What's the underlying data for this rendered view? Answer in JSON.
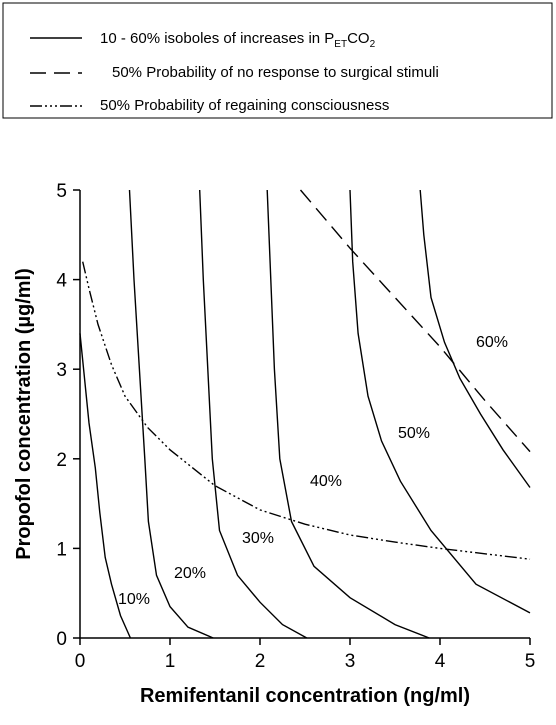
{
  "chart_data": {
    "type": "line",
    "legend": [
      {
        "text": [
          "10 - 60% isoboles of increases in P",
          "ET",
          "CO",
          "2"
        ],
        "style": "solid"
      },
      {
        "text": "50% Probability of no response to surgical stimuli",
        "style": "dashed"
      },
      {
        "text": "50% Probability of regaining consciousness",
        "style": "dashdot"
      }
    ],
    "x_label": "Remifentanil concentration (ng/ml)",
    "y_label": "Propofol concentration (µg/ml)",
    "xlim": [
      0,
      5
    ],
    "xticks": [
      0,
      1,
      2,
      3,
      4,
      5
    ],
    "ylim": [
      0,
      5
    ],
    "yticks": [
      0,
      1,
      2,
      3,
      4,
      5
    ],
    "color": "#000000",
    "series": [
      {
        "name": "10%",
        "style": "solid",
        "x": [
          0,
          0.05,
          0.1,
          0.17,
          0.22,
          0.28,
          0.35,
          0.45,
          0.56
        ],
        "y": [
          3.4,
          2.9,
          2.4,
          1.9,
          1.4,
          0.9,
          0.6,
          0.25,
          0
        ]
      },
      {
        "name": "20%",
        "style": "solid",
        "x": [
          0.55,
          0.6,
          0.66,
          0.72,
          0.76,
          0.85,
          1.0,
          1.2,
          1.48
        ],
        "y": [
          5,
          4,
          3,
          2,
          1.3,
          0.7,
          0.35,
          0.12,
          0
        ]
      },
      {
        "name": "30%",
        "style": "solid",
        "x": [
          1.33,
          1.37,
          1.42,
          1.47,
          1.55,
          1.75,
          2.0,
          2.25,
          2.52
        ],
        "y": [
          5,
          4,
          3,
          2,
          1.2,
          0.7,
          0.4,
          0.15,
          0
        ]
      },
      {
        "name": "40%",
        "style": "solid",
        "x": [
          2.08,
          2.12,
          2.16,
          2.22,
          2.35,
          2.6,
          3.0,
          3.5,
          3.88
        ],
        "y": [
          5,
          4,
          3,
          2,
          1.3,
          0.8,
          0.45,
          0.15,
          0
        ]
      },
      {
        "name": "50%",
        "style": "solid",
        "x": [
          3.0,
          3.03,
          3.09,
          3.2,
          3.35,
          3.56,
          3.9,
          4.4,
          5
        ],
        "y": [
          5,
          4.2,
          3.4,
          2.7,
          2.2,
          1.75,
          1.2,
          0.6,
          0.28
        ]
      },
      {
        "name": "60%",
        "style": "solid",
        "x": [
          3.78,
          3.82,
          3.9,
          4.05,
          4.22,
          4.45,
          4.7,
          5
        ],
        "y": [
          5,
          4.5,
          3.8,
          3.3,
          2.9,
          2.5,
          2.1,
          1.68
        ]
      },
      {
        "style": "dashed",
        "x": [
          2.45,
          3,
          3.5,
          4,
          4.5,
          5
        ],
        "y": [
          5,
          4.35,
          3.8,
          3.25,
          2.65,
          2.08
        ]
      },
      {
        "style": "dashdot",
        "x": [
          0.03,
          0.1,
          0.2,
          0.35,
          0.5,
          0.75,
          1,
          1.5,
          2,
          2.5,
          3,
          3.5,
          4,
          4.5,
          5
        ],
        "y": [
          4.2,
          3.9,
          3.5,
          3.05,
          2.7,
          2.35,
          2.1,
          1.7,
          1.43,
          1.27,
          1.15,
          1.07,
          1.0,
          0.94,
          0.88
        ]
      }
    ]
  }
}
